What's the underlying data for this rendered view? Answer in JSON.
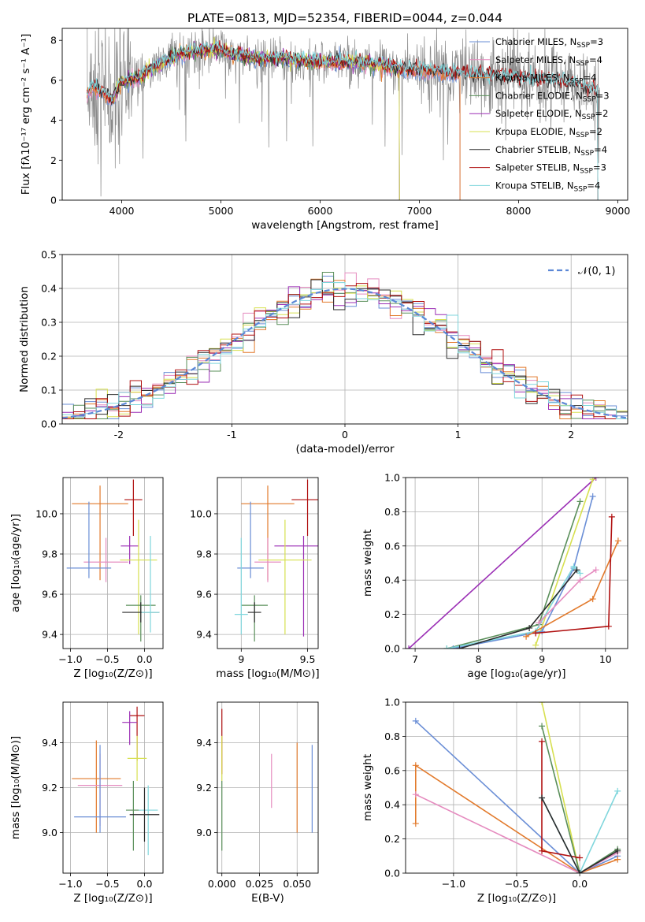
{
  "colors": {
    "chabrier_miles": "#6a8ed6",
    "salpeter_miles": "#e58bbf",
    "kroupa_miles": "#e27a2c",
    "chabrier_elodie": "#5a8f5a",
    "salpeter_elodie": "#9b2fb5",
    "kroupa_elodie": "#d7e050",
    "chabrier_stelib": "#2b2b2b",
    "salpeter_stelib": "#b01010",
    "kroupa_stelib": "#7fd6dc",
    "data": "#8a8a8a"
  },
  "chart_data": [
    {
      "id": "spectrum",
      "type": "line",
      "title": "PLATE=0813, MJD=52354, FIBERID=0044, z=0.044",
      "xlabel": "wavelength [Angstrom, rest frame]",
      "ylabel": "Flux [fλ10⁻¹⁷ erg cm⁻² s⁻¹ A⁻¹]",
      "xlim": [
        3400,
        9100
      ],
      "ylim": [
        0,
        8.6
      ],
      "xticks": [
        4000,
        5000,
        6000,
        7000,
        8000,
        9000
      ],
      "yticks": [
        0,
        2,
        4,
        6,
        8
      ],
      "legend_position": "upper-right",
      "legend": [
        {
          "name": "Chabrier MILES, N",
          "sub": "SSP",
          "suffix": "=3",
          "color_key": "chabrier_miles"
        },
        {
          "name": "Salpeter MILES, N",
          "sub": "SSP",
          "suffix": "=4",
          "color_key": "salpeter_miles"
        },
        {
          "name": "Kroupa MILES, N",
          "sub": "SSP",
          "suffix": "=4",
          "color_key": "kroupa_miles"
        },
        {
          "name": "Chabrier ELODIE, N",
          "sub": "SSP",
          "suffix": "=3",
          "color_key": "chabrier_elodie"
        },
        {
          "name": "Salpeter ELODIE, N",
          "sub": "SSP",
          "suffix": "=2",
          "color_key": "salpeter_elodie"
        },
        {
          "name": "Kroupa ELODIE, N",
          "sub": "SSP",
          "suffix": "=2",
          "color_key": "kroupa_elodie"
        },
        {
          "name": "Chabrier STELIB, N",
          "sub": "SSP",
          "suffix": "=4",
          "color_key": "chabrier_stelib"
        },
        {
          "name": "Salpeter STELIB, N",
          "sub": "SSP",
          "suffix": "=3",
          "color_key": "salpeter_stelib"
        },
        {
          "name": "Kroupa STELIB, N",
          "sub": "SSP",
          "suffix": "=4",
          "color_key": "kroupa_stelib"
        }
      ],
      "model_coverage": {
        "miles": [
          3650,
          7410
        ],
        "elodie": [
          3900,
          6800
        ],
        "stelib": [
          3650,
          8800
        ]
      },
      "continuum": [
        [
          3650,
          5.2
        ],
        [
          3700,
          5.7
        ],
        [
          3800,
          5.5
        ],
        [
          3900,
          5.0
        ],
        [
          4000,
          5.9
        ],
        [
          4200,
          6.2
        ],
        [
          4400,
          6.9
        ],
        [
          4600,
          7.3
        ],
        [
          4800,
          7.5
        ],
        [
          5000,
          7.5
        ],
        [
          5200,
          7.2
        ],
        [
          5400,
          7.1
        ],
        [
          5600,
          7.1
        ],
        [
          5800,
          7.0
        ],
        [
          6000,
          6.95
        ],
        [
          6200,
          6.9
        ],
        [
          6400,
          6.9
        ],
        [
          6600,
          6.8
        ],
        [
          6800,
          6.6
        ],
        [
          7000,
          6.5
        ],
        [
          7200,
          6.4
        ],
        [
          7400,
          6.3
        ],
        [
          7600,
          6.3
        ],
        [
          7800,
          6.2
        ],
        [
          8000,
          6.1
        ],
        [
          8200,
          6.0
        ],
        [
          8400,
          5.9
        ],
        [
          8600,
          5.7
        ],
        [
          8800,
          5.5
        ]
      ]
    },
    {
      "id": "residuals",
      "type": "step",
      "xlabel": "(data-model)/error",
      "ylabel": "Normed distribution",
      "xlim": [
        -2.5,
        2.5
      ],
      "ylim": [
        0,
        0.5
      ],
      "xticks": [
        -2,
        -1,
        0,
        1,
        2
      ],
      "yticks": [
        0.0,
        0.1,
        0.2,
        0.3,
        0.4,
        0.5
      ],
      "grid": true,
      "legend_position": "upper-right",
      "normal_curve": {
        "label": "𝒩(0, 1)",
        "color": "#5b87d6",
        "mean": 0,
        "sigma": 1
      },
      "bin_width": 0.1
    },
    {
      "id": "age-vs-Z",
      "type": "errorbar",
      "xlabel": "Z [log₁₀(Z/Z⊙)]",
      "ylabel": "age  [log₁₀(age/yr)]",
      "xlim": [
        -1.1,
        0.25
      ],
      "ylim": [
        9.33,
        10.18
      ],
      "xticks": [
        -1.0,
        -0.5,
        0.0
      ],
      "xtick_labels": [
        "−1.0",
        "−0.5",
        "0.0"
      ],
      "yticks": [
        9.4,
        9.6,
        9.8,
        10.0
      ],
      "grid": true,
      "points": [
        {
          "color_key": "kroupa_miles",
          "x": -0.6,
          "xerr": 0.38,
          "y": 10.05,
          "yerr": [
            0.38,
            0.09
          ]
        },
        {
          "color_key": "salpeter_stelib",
          "x": -0.15,
          "xerr": 0.12,
          "y": 10.07,
          "yerr": [
            0.18,
            0.1
          ]
        },
        {
          "color_key": "salpeter_elodie",
          "x": -0.2,
          "xerr": 0.12,
          "y": 9.84,
          "yerr": [
            0.09,
            0.05
          ]
        },
        {
          "color_key": "salpeter_miles",
          "x": -0.52,
          "xerr": 0.3,
          "y": 9.76,
          "yerr": [
            0.1,
            0.12
          ]
        },
        {
          "color_key": "kroupa_elodie",
          "x": -0.08,
          "xerr": 0.25,
          "y": 9.77,
          "yerr": [
            0.37,
            0.2
          ]
        },
        {
          "color_key": "chabrier_miles",
          "x": -0.75,
          "xerr": 0.3,
          "y": 9.73,
          "yerr": [
            0.05,
            0.33
          ]
        },
        {
          "color_key": "chabrier_elodie",
          "x": -0.05,
          "xerr": 0.2,
          "y": 9.545,
          "yerr": [
            0.18,
            0.05
          ]
        },
        {
          "color_key": "chabrier_stelib",
          "x": -0.05,
          "xerr": 0.25,
          "y": 9.51,
          "yerr": [
            0.05,
            0.05
          ]
        },
        {
          "color_key": "kroupa_stelib",
          "x": 0.08,
          "xerr": 0.12,
          "y": 9.51,
          "yerr": [
            0.1,
            0.38
          ]
        }
      ]
    },
    {
      "id": "age-vs-mass",
      "type": "errorbar",
      "xlabel": "mass [log₁₀(M/M⊙)]",
      "xlim": [
        8.82,
        9.58
      ],
      "ylim": [
        9.33,
        10.18
      ],
      "xticks": [
        9.0,
        9.5
      ],
      "yticks": [
        9.4,
        9.6,
        9.8,
        10.0
      ],
      "grid": true,
      "points": [
        {
          "color_key": "kroupa_miles",
          "x": 9.2,
          "xerr": 0.2,
          "y": 10.05,
          "yerr": [
            0.38,
            0.09
          ]
        },
        {
          "color_key": "salpeter_stelib",
          "x": 9.5,
          "xerr": 0.12,
          "y": 10.07,
          "yerr": [
            0.18,
            0.1
          ]
        },
        {
          "color_key": "salpeter_elodie",
          "x": 9.47,
          "xerr": 0.22,
          "y": 9.84,
          "yerr": [
            0.45,
            0.05
          ]
        },
        {
          "color_key": "salpeter_miles",
          "x": 9.2,
          "xerr": 0.1,
          "y": 9.76,
          "yerr": [
            0.1,
            0.12
          ]
        },
        {
          "color_key": "kroupa_elodie",
          "x": 9.33,
          "xerr": 0.2,
          "y": 9.77,
          "yerr": [
            0.37,
            0.2
          ]
        },
        {
          "color_key": "chabrier_miles",
          "x": 9.07,
          "xerr": 0.1,
          "y": 9.73,
          "yerr": [
            0.05,
            0.33
          ]
        },
        {
          "color_key": "chabrier_elodie",
          "x": 9.1,
          "xerr": 0.1,
          "y": 9.545,
          "yerr": [
            0.18,
            0.05
          ]
        },
        {
          "color_key": "chabrier_stelib",
          "x": 9.1,
          "xerr": 0.05,
          "y": 9.51,
          "yerr": [
            0.05,
            0.05
          ]
        },
        {
          "color_key": "kroupa_stelib",
          "x": 9.0,
          "xerr": 0.05,
          "y": 9.5,
          "yerr": [
            0.1,
            0.38
          ]
        }
      ]
    },
    {
      "id": "weight-vs-age",
      "type": "line",
      "xlabel": "age  [log₁₀(age/yr)]",
      "ylabel": "mass weight",
      "xlim": [
        6.85,
        10.35
      ],
      "ylim": [
        0,
        1
      ],
      "xticks": [
        7,
        8,
        9,
        10
      ],
      "yticks": [
        0.0,
        0.2,
        0.4,
        0.6,
        0.8,
        1.0
      ],
      "grid": true,
      "series": [
        {
          "color_key": "salpeter_elodie",
          "points": [
            [
              6.9,
              0.0
            ],
            [
              9.85,
              1.0
            ]
          ]
        },
        {
          "color_key": "kroupa_elodie",
          "points": [
            [
              8.9,
              0.02
            ],
            [
              9.8,
              0.99
            ]
          ]
        },
        {
          "color_key": "chabrier_elodie",
          "points": [
            [
              7.5,
              0.0
            ],
            [
              8.95,
              0.14
            ],
            [
              9.6,
              0.86
            ]
          ]
        },
        {
          "color_key": "chabrier_miles",
          "points": [
            [
              7.6,
              0.0
            ],
            [
              9.0,
              0.1
            ],
            [
              9.5,
              0.47
            ],
            [
              9.8,
              0.89
            ]
          ]
        },
        {
          "color_key": "kroupa_stelib",
          "points": [
            [
              7.5,
              0.0
            ],
            [
              8.9,
              0.1
            ],
            [
              9.5,
              0.48
            ],
            [
              9.6,
              0.44
            ]
          ]
        },
        {
          "color_key": "kroupa_miles",
          "points": [
            [
              8.75,
              0.07
            ],
            [
              9.8,
              0.29
            ],
            [
              10.2,
              0.63
            ]
          ]
        },
        {
          "color_key": "salpeter_miles",
          "points": [
            [
              8.95,
              0.15
            ],
            [
              9.6,
              0.4
            ],
            [
              9.85,
              0.46
            ]
          ]
        },
        {
          "color_key": "salpeter_stelib",
          "points": [
            [
              8.9,
              0.09
            ],
            [
              10.05,
              0.13
            ],
            [
              10.1,
              0.77
            ]
          ]
        },
        {
          "color_key": "chabrier_stelib",
          "points": [
            [
              7.7,
              0.0
            ],
            [
              8.8,
              0.12
            ],
            [
              9.55,
              0.46
            ]
          ]
        }
      ]
    },
    {
      "id": "mass-vs-Z",
      "type": "errorbar",
      "xlabel": "Z [log₁₀(Z/Z⊙)]",
      "ylabel": "mass [log₁₀(M/M⊙)]",
      "xlim": [
        -1.1,
        0.25
      ],
      "ylim": [
        8.82,
        9.58
      ],
      "xticks": [
        -1.0,
        -0.5,
        0.0
      ],
      "xtick_labels": [
        "−1.0",
        "−0.5",
        "0.0"
      ],
      "yticks": [
        9.0,
        9.2,
        9.4
      ],
      "grid": true,
      "points": [
        {
          "color_key": "salpeter_stelib",
          "x": -0.1,
          "xerr": 0.1,
          "y": 9.52,
          "yerr": [
            0.2,
            0.04
          ]
        },
        {
          "color_key": "salpeter_elodie",
          "x": -0.2,
          "xerr": 0.1,
          "y": 9.49,
          "yerr": [
            0.1,
            0.05
          ]
        },
        {
          "color_key": "kroupa_elodie",
          "x": -0.1,
          "xerr": 0.13,
          "y": 9.33,
          "yerr": [
            0.1,
            0.1
          ]
        },
        {
          "color_key": "kroupa_miles",
          "x": -0.65,
          "xerr": 0.33,
          "y": 9.24,
          "yerr": [
            0.24,
            0.17
          ]
        },
        {
          "color_key": "salpeter_miles",
          "x": -0.6,
          "xerr": 0.3,
          "y": 9.21,
          "yerr": [
            0.18,
            0.14
          ]
        },
        {
          "color_key": "chabrier_elodie",
          "x": -0.15,
          "xerr": 0.1,
          "y": 9.1,
          "yerr": [
            0.18,
            0.13
          ]
        },
        {
          "color_key": "kroupa_stelib",
          "x": 0.05,
          "xerr": 0.13,
          "y": 9.1,
          "yerr": [
            0.2,
            0.11
          ]
        },
        {
          "color_key": "chabrier_stelib",
          "x": 0.0,
          "xerr": 0.2,
          "y": 9.08,
          "yerr": [
            0.12,
            0.12
          ]
        },
        {
          "color_key": "chabrier_miles",
          "x": -0.6,
          "xerr": 0.35,
          "y": 9.07,
          "yerr": [
            0.07,
            0.32
          ]
        }
      ]
    },
    {
      "id": "mass-vs-ebv",
      "type": "errorbar",
      "xlabel": "E(B-V)",
      "xlim": [
        -0.003,
        0.064
      ],
      "ylim": [
        8.82,
        9.58
      ],
      "xticks": [
        0.0,
        0.025,
        0.05
      ],
      "xtick_labels": [
        "0.000",
        "0.025",
        "0.050"
      ],
      "yticks": [
        9.0,
        9.2,
        9.4
      ],
      "grid": true,
      "points": [
        {
          "color_key": "salpeter_stelib",
          "x": 0.0,
          "y": 9.42,
          "yerr": [
            0.16,
            0.13
          ]
        },
        {
          "color_key": "kroupa_elodie",
          "x": 0.0,
          "y": 9.33,
          "yerr": [
            0.1,
            0.1
          ]
        },
        {
          "color_key": "chabrier_elodie",
          "x": 0.0,
          "y": 9.1,
          "yerr": [
            0.18,
            0.13
          ]
        },
        {
          "color_key": "salpeter_miles",
          "x": 0.033,
          "y": 9.21,
          "yerr": [
            0.1,
            0.14
          ]
        },
        {
          "color_key": "kroupa_miles",
          "x": 0.05,
          "y": 9.2,
          "yerr": [
            0.2,
            0.2
          ]
        },
        {
          "color_key": "chabrier_miles",
          "x": 0.06,
          "y": 9.19,
          "yerr": [
            0.19,
            0.2
          ]
        }
      ]
    },
    {
      "id": "weight-vs-Z",
      "type": "line",
      "xlabel": "Z [log₁₀(Z/Z⊙)]",
      "ylabel": "mass weight",
      "xlim": [
        -1.38,
        0.38
      ],
      "ylim": [
        0,
        1
      ],
      "xticks": [
        -1.0,
        -0.5,
        0.0
      ],
      "xtick_labels": [
        "−1.0",
        "−0.5",
        "0.0"
      ],
      "yticks": [
        0.0,
        0.2,
        0.4,
        0.6,
        0.8,
        1.0
      ],
      "grid": true,
      "series": [
        {
          "color_key": "kroupa_elodie",
          "points": [
            [
              -0.3,
              1.0
            ],
            [
              0.0,
              0.0
            ]
          ]
        },
        {
          "color_key": "chabrier_elodie",
          "points": [
            [
              -0.3,
              0.86
            ],
            [
              0.0,
              0.0
            ],
            [
              0.3,
              0.14
            ]
          ]
        },
        {
          "color_key": "chabrier_miles",
          "points": [
            [
              -1.3,
              0.89
            ],
            [
              0.0,
              0.0
            ],
            [
              0.3,
              0.1
            ]
          ]
        },
        {
          "color_key": "kroupa_miles",
          "points": [
            [
              -1.3,
              0.29
            ],
            [
              -1.3,
              0.63
            ],
            [
              0.0,
              0.0
            ],
            [
              0.3,
              0.08
            ]
          ]
        },
        {
          "color_key": "salpeter_miles",
          "points": [
            [
              -1.3,
              0.46
            ],
            [
              0.0,
              0.0
            ],
            [
              0.3,
              0.12
            ]
          ]
        },
        {
          "color_key": "salpeter_stelib",
          "points": [
            [
              -0.3,
              0.77
            ],
            [
              -0.3,
              0.13
            ],
            [
              0.0,
              0.09
            ]
          ]
        },
        {
          "color_key": "kroupa_stelib",
          "points": [
            [
              -0.3,
              0.44
            ],
            [
              0.0,
              0.0
            ],
            [
              0.3,
              0.48
            ]
          ]
        },
        {
          "color_key": "chabrier_stelib",
          "points": [
            [
              -0.3,
              0.44
            ],
            [
              0.0,
              0.0
            ],
            [
              0.3,
              0.13
            ]
          ]
        }
      ]
    }
  ]
}
